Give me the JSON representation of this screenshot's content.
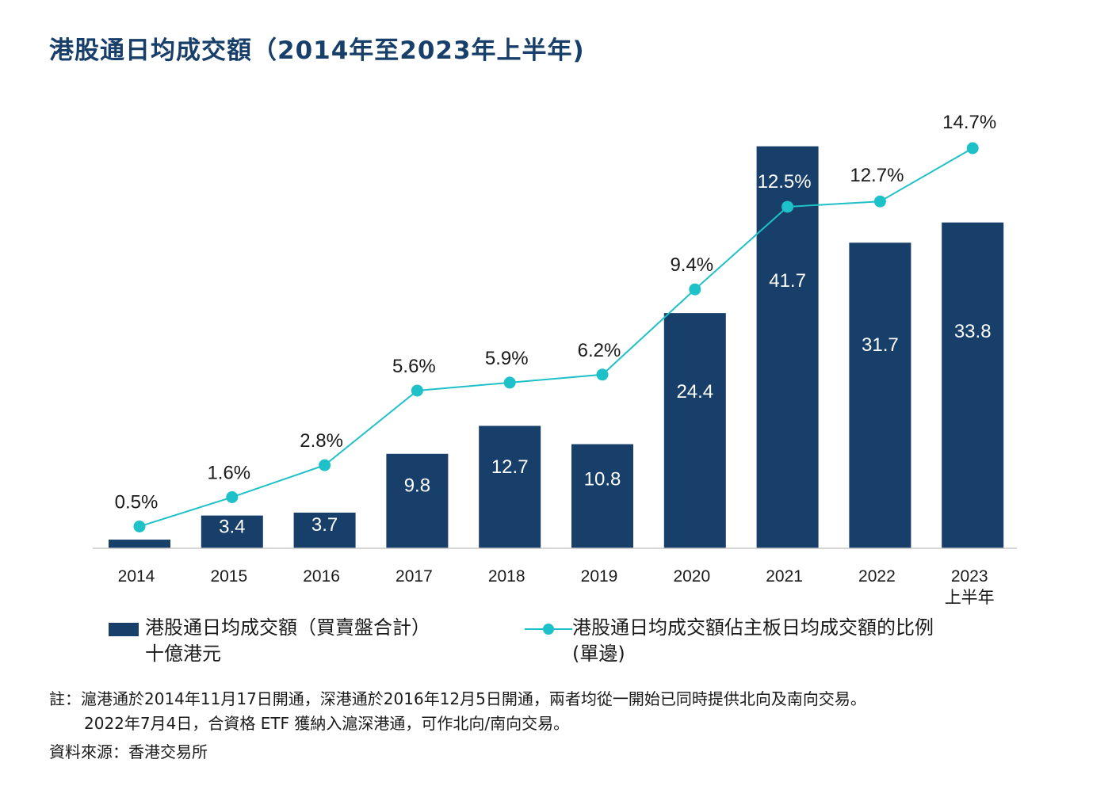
{
  "title": "港股通日均成交額（2014年至2023年上半年)",
  "colors": {
    "bar": "#173f6a",
    "line": "#1fc1c8",
    "axis": "#c8c8c8",
    "title": "#173f6a"
  },
  "chart_data": {
    "type": "bar",
    "categories": [
      "2014",
      "2015",
      "2016",
      "2017",
      "2018",
      "2019",
      "2020",
      "2021",
      "2022",
      "2023\n上半年"
    ],
    "category_lines": [
      [
        "2014"
      ],
      [
        "2015"
      ],
      [
        "2016"
      ],
      [
        "2017"
      ],
      [
        "2018"
      ],
      [
        "2019"
      ],
      [
        "2020"
      ],
      [
        "2021"
      ],
      [
        "2022"
      ],
      [
        "2023",
        "上半年"
      ]
    ],
    "series": [
      {
        "name": "港股通日均成交額（買賣盤合計）十億港元",
        "type": "bar",
        "values": [
          0.9,
          3.4,
          3.7,
          9.8,
          12.7,
          10.8,
          24.4,
          41.7,
          31.7,
          33.8
        ],
        "labels": [
          "0.9",
          "3.4",
          "3.7",
          "9.8",
          "12.7",
          "10.8",
          "24.4",
          "41.7",
          "31.7",
          "33.8"
        ]
      },
      {
        "name": "港股通日均成交額佔主板日均成交額的比例（單邊）",
        "type": "line",
        "values": [
          0.5,
          1.6,
          2.8,
          5.6,
          5.9,
          6.2,
          9.4,
          12.5,
          12.7,
          14.7
        ],
        "labels": [
          "0.5%",
          "1.6%",
          "2.8%",
          "5.6%",
          "5.9%",
          "6.2%",
          "9.4%",
          "12.5%",
          "12.7%",
          "14.7%"
        ]
      }
    ],
    "bar_ylim": [
      0,
      42
    ],
    "line_ylim": [
      -0.2,
      14.7
    ]
  },
  "legend": {
    "bar_label_line1": "港股通日均成交額（買賣盤合計）",
    "bar_label_line2": "十億港元",
    "line_label_line1": "港股通日均成交額佔主板日均成交額的比例",
    "line_label_line2": "(單邊)"
  },
  "notes": {
    "line1": "註：滬港通於2014年11月17日開通，深港通於2016年12月5日開通，兩者均從一開始已同時提供北向及南向交易。",
    "line2": "2022年7月4日，合資格 ETF 獲納入滬深港通，可作北向/南向交易。",
    "source": "資料來源：香港交易所"
  }
}
